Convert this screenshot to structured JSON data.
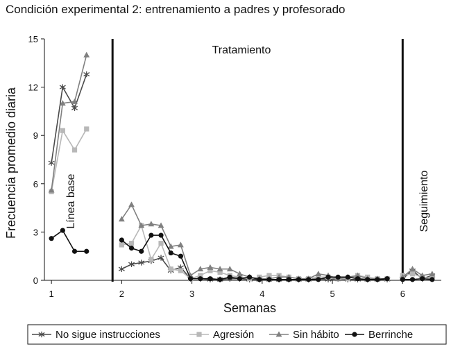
{
  "chart_data": {
    "type": "line",
    "title": "Condición experimental 2: entrenamiento a padres y profesorado",
    "xlabel": "Semanas",
    "ylabel": "Frecuencia promedio diaria",
    "ylim": [
      0,
      15
    ],
    "xlim": [
      0.9,
      6.55
    ],
    "y_ticks": [
      "0",
      "3",
      "6",
      "9",
      "12",
      "15"
    ],
    "x_ticks": [
      "1",
      "2",
      "3",
      "4",
      "5",
      "6"
    ],
    "grid": false,
    "legend_position": "bottom",
    "phase_lines_x": [
      1.87,
      6.0
    ],
    "annotations": {
      "baseline": "Línea base",
      "treatment": "Tratamiento",
      "followup": "Seguimiento"
    },
    "series": [
      {
        "name": "No sigue instrucciones",
        "marker": "star",
        "color": "#4a4a4a",
        "segments": [
          {
            "x": [
              1.0,
              1.16,
              1.33,
              1.5
            ],
            "y": [
              7.3,
              12.0,
              10.7,
              12.8
            ]
          },
          {
            "x": [
              2.0,
              2.14,
              2.28,
              2.42,
              2.56,
              2.7,
              2.84,
              2.98,
              3.12,
              3.26,
              3.4,
              3.54,
              3.68,
              3.82,
              3.96,
              4.1,
              4.24,
              4.38,
              4.52,
              4.66,
              4.8,
              4.94,
              5.08,
              5.22,
              5.36,
              5.5,
              5.64,
              5.78
            ],
            "y": [
              0.7,
              1.0,
              1.1,
              1.2,
              1.4,
              0.6,
              0.8,
              0.1,
              0.1,
              0.05,
              0.05,
              0.1,
              0.1,
              0.05,
              0.05,
              0.05,
              0.05,
              0.05,
              0.05,
              0.05,
              0.1,
              0.05,
              0.1,
              0.05,
              0.05,
              0.05,
              0.05,
              0.05
            ]
          },
          {
            "x": [
              6.0,
              6.14,
              6.28,
              6.42
            ],
            "y": [
              0.1,
              0.6,
              0.1,
              0.3
            ]
          }
        ]
      },
      {
        "name": "Agresión",
        "marker": "square",
        "color": "#b8b8b8",
        "segments": [
          {
            "x": [
              1.0,
              1.16,
              1.33,
              1.5
            ],
            "y": [
              5.5,
              9.3,
              8.1,
              9.4
            ]
          },
          {
            "x": [
              2.0,
              2.14,
              2.28,
              2.42,
              2.56,
              2.7,
              2.84,
              2.98,
              3.12,
              3.26,
              3.4,
              3.54,
              3.68,
              3.82,
              3.96,
              4.1,
              4.24,
              4.38,
              4.52,
              4.66,
              4.8,
              4.94,
              5.08,
              5.22,
              5.36,
              5.5,
              5.64,
              5.78
            ],
            "y": [
              2.2,
              2.3,
              3.4,
              1.3,
              2.3,
              0.7,
              0.6,
              0.1,
              0.3,
              0.6,
              0.5,
              0.3,
              0.2,
              0.1,
              0.2,
              0.3,
              0.3,
              0.2,
              0.1,
              0.1,
              0.2,
              0.2,
              0.1,
              0.1,
              0.3,
              0.2,
              0.1,
              0.1
            ]
          },
          {
            "x": [
              6.0,
              6.14,
              6.28,
              6.42
            ],
            "y": [
              0.3,
              0.4,
              0.2,
              0.1
            ]
          }
        ]
      },
      {
        "name": "Sin hábito",
        "marker": "triangle",
        "color": "#808080",
        "segments": [
          {
            "x": [
              1.0,
              1.16,
              1.33,
              1.5
            ],
            "y": [
              5.6,
              11.0,
              11.1,
              14.0
            ]
          },
          {
            "x": [
              2.0,
              2.14,
              2.28,
              2.42,
              2.56,
              2.7,
              2.84,
              2.98,
              3.12,
              3.26,
              3.4,
              3.54,
              3.68,
              3.82,
              3.96,
              4.1,
              4.24,
              4.38,
              4.52,
              4.66,
              4.8,
              4.94,
              5.08,
              5.22,
              5.36,
              5.5,
              5.64,
              5.78
            ],
            "y": [
              3.8,
              4.7,
              3.4,
              3.5,
              3.4,
              2.1,
              2.2,
              0.3,
              0.7,
              0.8,
              0.7,
              0.7,
              0.4,
              0.2,
              0.1,
              0.1,
              0.2,
              0.2,
              0.1,
              0.1,
              0.4,
              0.3,
              0.1,
              0.2,
              0.3,
              0.1,
              0.1,
              0.1
            ]
          },
          {
            "x": [
              6.0,
              6.14,
              6.28,
              6.42
            ],
            "y": [
              0.2,
              0.7,
              0.3,
              0.4
            ]
          }
        ]
      },
      {
        "name": "Berrinche",
        "marker": "circle",
        "color": "#111111",
        "segments": [
          {
            "x": [
              1.0,
              1.16,
              1.33,
              1.5
            ],
            "y": [
              2.6,
              3.1,
              1.8,
              1.8
            ]
          },
          {
            "x": [
              2.0,
              2.14,
              2.28,
              2.42,
              2.56,
              2.7,
              2.84,
              2.98,
              3.12,
              3.26,
              3.4,
              3.54,
              3.68,
              3.82,
              3.96,
              4.1,
              4.24,
              4.38,
              4.52,
              4.66,
              4.8,
              4.94,
              5.08,
              5.22,
              5.36,
              5.5,
              5.64,
              5.78
            ],
            "y": [
              2.5,
              2.0,
              1.8,
              2.8,
              2.8,
              1.7,
              1.5,
              0.1,
              0.1,
              0.1,
              0.05,
              0.2,
              0.1,
              0.2,
              0.05,
              0.05,
              0.05,
              0.05,
              0.05,
              0.05,
              0.05,
              0.2,
              0.2,
              0.2,
              0.1,
              0.05,
              0.05,
              0.1
            ]
          },
          {
            "x": [
              6.0,
              6.14,
              6.28,
              6.42
            ],
            "y": [
              0.05,
              0.05,
              0.1,
              0.05
            ]
          }
        ]
      }
    ]
  }
}
